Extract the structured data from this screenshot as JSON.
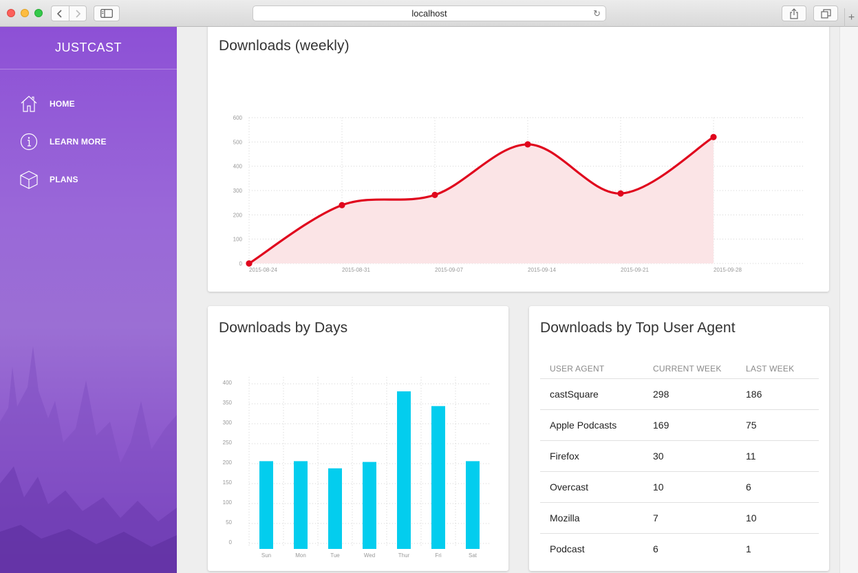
{
  "browser": {
    "url": "localhost"
  },
  "sidebar": {
    "brand": "JUSTCAST",
    "items": [
      {
        "label": "HOME",
        "icon": "home-icon"
      },
      {
        "label": "LEARN MORE",
        "icon": "info-icon"
      },
      {
        "label": "PLANS",
        "icon": "cube-icon"
      }
    ]
  },
  "weekly": {
    "title": "Downloads (weekly)"
  },
  "days": {
    "title": "Downloads by Days"
  },
  "agents": {
    "title": "Downloads by Top User Agent",
    "columns": [
      "USER AGENT",
      "CURRENT WEEK",
      "LAST WEEK"
    ],
    "rows": [
      [
        "castSquare",
        "298",
        "186"
      ],
      [
        "Apple Podcasts",
        "169",
        "75"
      ],
      [
        "Firefox",
        "30",
        "11"
      ],
      [
        "Overcast",
        "10",
        "6"
      ],
      [
        "Mozilla",
        "7",
        "10"
      ],
      [
        "Podcast",
        "6",
        "1"
      ]
    ]
  },
  "chart_data": [
    {
      "type": "area",
      "title": "Downloads (weekly)",
      "x": [
        "2015-08-24",
        "2015-08-31",
        "2015-09-07",
        "2015-09-14",
        "2015-09-21",
        "2015-09-28"
      ],
      "values": [
        0,
        240,
        282,
        490,
        288,
        520
      ],
      "ylim": [
        0,
        600
      ],
      "yticks": [
        0,
        100,
        200,
        300,
        400,
        500,
        600
      ],
      "grid": true,
      "line_color": "#e0061d",
      "fill_color": "#fbe4e6"
    },
    {
      "type": "bar",
      "title": "Downloads by Days",
      "categories": [
        "Sun",
        "Mon",
        "Tue",
        "Wed",
        "Thur",
        "Fri",
        "Sat"
      ],
      "values": [
        220,
        220,
        202,
        218,
        395,
        358,
        220
      ],
      "ylim": [
        0,
        400
      ],
      "yticks": [
        0,
        50,
        100,
        150,
        200,
        250,
        300,
        350,
        400
      ],
      "grid": true,
      "bar_color": "#03cdee"
    }
  ]
}
